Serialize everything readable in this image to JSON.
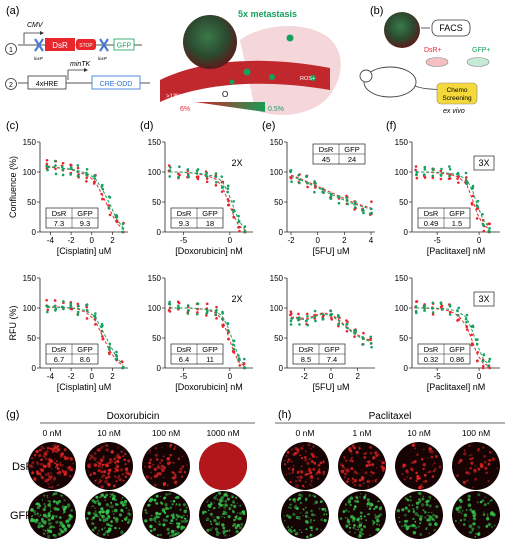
{
  "colors": {
    "dsr": "#e8262c",
    "gfp": "#16a05d",
    "axis": "#222222",
    "well_dark": "#1a0606"
  },
  "panel_a": {
    "letter": "(a)",
    "construct1": {
      "index": "1",
      "promoter": "CMV",
      "dsr": "DsR",
      "stop": "STOP",
      "gfp": "GFP",
      "loxp1": "loxP",
      "loxp2": "loxP"
    },
    "construct2": {
      "index": "2",
      "hre": "4xHRE",
      "mintk": "minTK",
      "cre": "CRE-ODD"
    },
    "metastasis": "5x metastasis",
    "ros1": "ROS-",
    "ros2": "ROS+",
    "o2_high": ">13% O",
    "o2_label": "O",
    "o2_scale_high": "6%",
    "o2_scale_low": "0.5%"
  },
  "panel_b": {
    "letter": "(b)",
    "facs": "FACS",
    "dsr": "DsR+",
    "gfp": "GFP+",
    "chemo1": "Chemo",
    "chemo2": "Screening",
    "exvivo": "ex vivo"
  },
  "chart_data": [
    {
      "type": "scatter",
      "panel": "(c)",
      "xlabel": "[Cisplatin] uM",
      "ylabel": "Confluence (%)",
      "xlim": [
        -5,
        3.5
      ],
      "ylim": [
        0,
        150
      ],
      "xticks": [
        -4,
        -2,
        0,
        2
      ],
      "yticks": [
        0,
        50,
        100,
        150
      ],
      "ic50": {
        "dsr_label": "DsR",
        "gfp_label": "GFP",
        "dsr": "7.3",
        "gfp": "9.3"
      },
      "fold": "",
      "series": [
        {
          "name": "DsR",
          "x": [
            -4.3,
            -3.5,
            -2.8,
            -2,
            -1.3,
            -0.5,
            0.3,
            1,
            1.7,
            2.4,
            3
          ],
          "y": [
            110,
            108,
            106,
            104,
            100,
            95,
            85,
            62,
            38,
            15,
            5
          ]
        },
        {
          "name": "GFP",
          "x": [
            -4.3,
            -3.5,
            -2.8,
            -2,
            -1.3,
            -0.5,
            0.3,
            1,
            1.7,
            2.4,
            3
          ],
          "y": [
            108,
            107,
            106,
            105,
            102,
            98,
            90,
            72,
            48,
            22,
            8
          ]
        }
      ]
    },
    {
      "type": "scatter",
      "panel": "(d)",
      "xlabel": "[Doxorubicin] nM",
      "ylabel": "",
      "xlim": [
        -7,
        2.5
      ],
      "ylim": [
        0,
        150
      ],
      "xticks": [
        -5,
        0
      ],
      "yticks": [
        0,
        50,
        100,
        150
      ],
      "ic50": {
        "dsr_label": "DsR",
        "gfp_label": "GFP",
        "dsr": "9.3",
        "gfp": "18"
      },
      "fold": "2X",
      "series": [
        {
          "name": "DsR",
          "x": [
            -6.5,
            -5.5,
            -4.5,
            -3.5,
            -2.5,
            -1.5,
            -0.8,
            -0.2,
            0.4,
            1,
            1.6
          ],
          "y": [
            100,
            100,
            99,
            97,
            94,
            88,
            75,
            52,
            28,
            10,
            4
          ]
        },
        {
          "name": "GFP",
          "x": [
            -6.5,
            -5.5,
            -4.5,
            -3.5,
            -2.5,
            -1.5,
            -0.8,
            -0.2,
            0.4,
            1,
            1.6
          ],
          "y": [
            100,
            100,
            99,
            98,
            96,
            92,
            84,
            66,
            42,
            18,
            6
          ]
        }
      ]
    },
    {
      "type": "scatter",
      "panel": "(e)",
      "xlabel": "[5FU] uM",
      "ylabel": "",
      "xlim": [
        -2.3,
        4.3
      ],
      "ylim": [
        0,
        150
      ],
      "xticks": [
        -2,
        0,
        2,
        4
      ],
      "yticks": [
        0,
        50,
        100,
        150
      ],
      "ic50": {
        "dsr_label": "DsR",
        "gfp_label": "GFP",
        "dsr": "45",
        "gfp": "24"
      },
      "fold": "",
      "series": [
        {
          "name": "DsR",
          "x": [
            -2,
            -1.4,
            -0.8,
            -0.2,
            0.4,
            1,
            1.6,
            2.2,
            2.8,
            3.4,
            4
          ],
          "y": [
            95,
            90,
            84,
            78,
            72,
            66,
            60,
            54,
            48,
            44,
            40
          ]
        },
        {
          "name": "GFP",
          "x": [
            -2,
            -1.4,
            -0.8,
            -0.2,
            0.4,
            1,
            1.6,
            2.2,
            2.8,
            3.4,
            4
          ],
          "y": [
            93,
            88,
            82,
            76,
            70,
            63,
            57,
            51,
            46,
            42,
            38
          ]
        }
      ]
    },
    {
      "type": "scatter",
      "panel": "(f)",
      "xlabel": "[Paclitaxel] nM",
      "ylabel": "",
      "xlim": [
        -8,
        2.5
      ],
      "ylim": [
        0,
        150
      ],
      "xticks": [
        -5,
        0
      ],
      "yticks": [
        0,
        50,
        100,
        150
      ],
      "ic50": {
        "dsr_label": "DsR",
        "gfp_label": "GFP",
        "dsr": "0.49",
        "gfp": "1.5"
      },
      "fold": "3X",
      "series": [
        {
          "name": "DsR",
          "x": [
            -7.5,
            -6.5,
            -5.5,
            -4.5,
            -3.5,
            -2.5,
            -1.5,
            -0.8,
            -0.2,
            0.5,
            1.2
          ],
          "y": [
            100,
            100,
            99,
            98,
            96,
            92,
            80,
            55,
            30,
            12,
            5
          ]
        },
        {
          "name": "GFP",
          "x": [
            -7.5,
            -6.5,
            -5.5,
            -4.5,
            -3.5,
            -2.5,
            -1.5,
            -0.8,
            -0.2,
            0.5,
            1.2
          ],
          "y": [
            100,
            100,
            100,
            99,
            98,
            95,
            88,
            70,
            45,
            20,
            8
          ]
        }
      ]
    },
    {
      "type": "scatter",
      "panel": "(c2)",
      "xlabel": "[Cisplatin] uM",
      "ylabel": "RFU (%)",
      "xlim": [
        -5,
        3.5
      ],
      "ylim": [
        0,
        150
      ],
      "xticks": [
        -4,
        -2,
        0,
        2
      ],
      "yticks": [
        0,
        50,
        100,
        150
      ],
      "ic50": {
        "dsr_label": "DsR",
        "gfp_label": "GFP",
        "dsr": "6.7",
        "gfp": "8.6"
      },
      "fold": "",
      "series": [
        {
          "name": "DsR",
          "x": [
            -4.3,
            -3.5,
            -2.8,
            -2,
            -1.3,
            -0.5,
            0.3,
            1,
            1.7,
            2.4,
            3
          ],
          "y": [
            102,
            102,
            101,
            100,
            98,
            92,
            80,
            55,
            30,
            12,
            4
          ]
        },
        {
          "name": "GFP",
          "x": [
            -4.3,
            -3.5,
            -2.8,
            -2,
            -1.3,
            -0.5,
            0.3,
            1,
            1.7,
            2.4,
            3
          ],
          "y": [
            101,
            101,
            101,
            100,
            99,
            95,
            86,
            64,
            40,
            18,
            6
          ]
        }
      ]
    },
    {
      "type": "scatter",
      "panel": "(d2)",
      "xlabel": "[Doxorubicin] nM",
      "ylabel": "",
      "xlim": [
        -7,
        2.5
      ],
      "ylim": [
        0,
        150
      ],
      "xticks": [
        -5,
        0
      ],
      "yticks": [
        0,
        50,
        100,
        150
      ],
      "ic50": {
        "dsr_label": "DsR",
        "gfp_label": "GFP",
        "dsr": "6.4",
        "gfp": "11"
      },
      "fold": "2X",
      "series": [
        {
          "name": "DsR",
          "x": [
            -6.5,
            -5.5,
            -4.5,
            -3.5,
            -2.5,
            -1.5,
            -0.8,
            -0.2,
            0.4,
            1,
            1.6
          ],
          "y": [
            100,
            100,
            100,
            99,
            97,
            92,
            80,
            55,
            28,
            9,
            3
          ]
        },
        {
          "name": "GFP",
          "x": [
            -6.5,
            -5.5,
            -4.5,
            -3.5,
            -2.5,
            -1.5,
            -0.8,
            -0.2,
            0.4,
            1,
            1.6
          ],
          "y": [
            100,
            100,
            100,
            99,
            98,
            95,
            86,
            68,
            42,
            16,
            5
          ]
        }
      ]
    },
    {
      "type": "scatter",
      "panel": "(e2)",
      "xlabel": "[5FU] uM",
      "ylabel": "",
      "xlim": [
        -3.3,
        3.3
      ],
      "ylim": [
        0,
        150
      ],
      "xticks": [
        -2,
        0,
        2
      ],
      "yticks": [
        0,
        50,
        100,
        150
      ],
      "ic50": {
        "dsr_label": "DsR",
        "gfp_label": "GFP",
        "dsr": "8.5",
        "gfp": "7.4"
      },
      "fold": "",
      "series": [
        {
          "name": "DsR",
          "x": [
            -3,
            -2.4,
            -1.8,
            -1.2,
            -0.6,
            0,
            0.6,
            1.2,
            1.8,
            2.4,
            3
          ],
          "y": [
            85,
            84,
            82,
            88,
            92,
            90,
            80,
            68,
            58,
            50,
            46
          ]
        },
        {
          "name": "GFP",
          "x": [
            -3,
            -2.4,
            -1.8,
            -1.2,
            -0.6,
            0,
            0.6,
            1.2,
            1.8,
            2.4,
            3
          ],
          "y": [
            83,
            82,
            80,
            86,
            90,
            88,
            78,
            66,
            56,
            48,
            44
          ]
        }
      ]
    },
    {
      "type": "scatter",
      "panel": "(f2)",
      "xlabel": "[Paclitaxel] nM",
      "ylabel": "",
      "xlim": [
        -8,
        2.5
      ],
      "ylim": [
        0,
        150
      ],
      "xticks": [
        -5,
        0
      ],
      "yticks": [
        0,
        50,
        100,
        150
      ],
      "ic50": {
        "dsr_label": "DsR",
        "gfp_label": "GFP",
        "dsr": "0.32",
        "gfp": "0.86"
      },
      "fold": "3X",
      "series": [
        {
          "name": "DsR",
          "x": [
            -7.5,
            -6.5,
            -5.5,
            -4.5,
            -3.5,
            -2.5,
            -1.5,
            -0.8,
            -0.2,
            0.5,
            1.2
          ],
          "y": [
            100,
            100,
            99,
            98,
            95,
            88,
            70,
            45,
            22,
            8,
            3
          ]
        },
        {
          "name": "GFP",
          "x": [
            -7.5,
            -6.5,
            -5.5,
            -4.5,
            -3.5,
            -2.5,
            -1.5,
            -0.8,
            -0.2,
            0.5,
            1.2
          ],
          "y": [
            100,
            100,
            100,
            99,
            98,
            94,
            84,
            62,
            38,
            15,
            5
          ]
        }
      ]
    }
  ],
  "panel_letters": {
    "c": "(c)",
    "d": "(d)",
    "e": "(e)",
    "f": "(f)"
  },
  "panel_g": {
    "letter": "(g)",
    "drug": "Doxorubicin",
    "doses": [
      "0 nM",
      "10 nM",
      "100 nM",
      "1000 nM"
    ],
    "intensity_dsr": [
      0.8,
      0.75,
      0.45,
      1.0
    ],
    "intensity_gfp": [
      0.9,
      0.85,
      0.8,
      0.8
    ]
  },
  "panel_h": {
    "letter": "(h)",
    "drug": "Paclitaxel",
    "doses": [
      "0 nM",
      "1 nM",
      "10 nM",
      "100 nM"
    ],
    "intensity_dsr": [
      0.65,
      0.6,
      0.35,
      0.3
    ],
    "intensity_gfp": [
      0.55,
      0.65,
      0.6,
      0.45
    ]
  },
  "row_labels": {
    "dsr": "DsR",
    "gfp": "GFP"
  }
}
